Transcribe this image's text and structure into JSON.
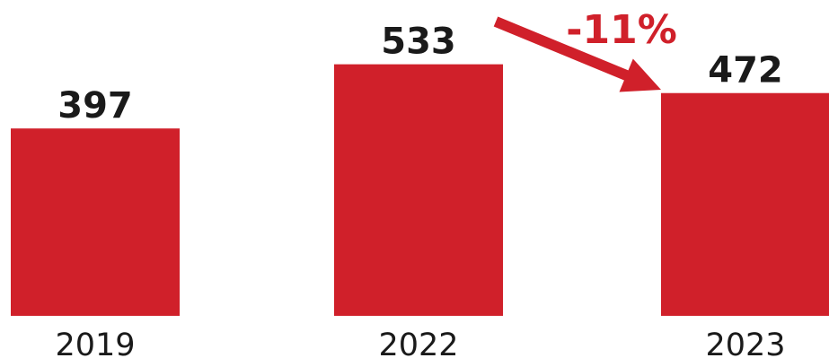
{
  "chart_data": {
    "type": "bar",
    "categories": [
      "2019",
      "2022",
      "2023"
    ],
    "values": [
      397,
      533,
      472
    ],
    "value_labels": [
      "397",
      "533",
      "472"
    ],
    "annotation": {
      "text": "-11%",
      "from_category": "2022",
      "to_category": "2023"
    },
    "title": "",
    "xlabel": "",
    "ylabel": "",
    "grid": false,
    "legend": "none",
    "colors": {
      "bar": "#d0202a",
      "value_text": "#1a1a1a",
      "category_text": "#1a1a1a",
      "annotation": "#d0202a"
    }
  }
}
